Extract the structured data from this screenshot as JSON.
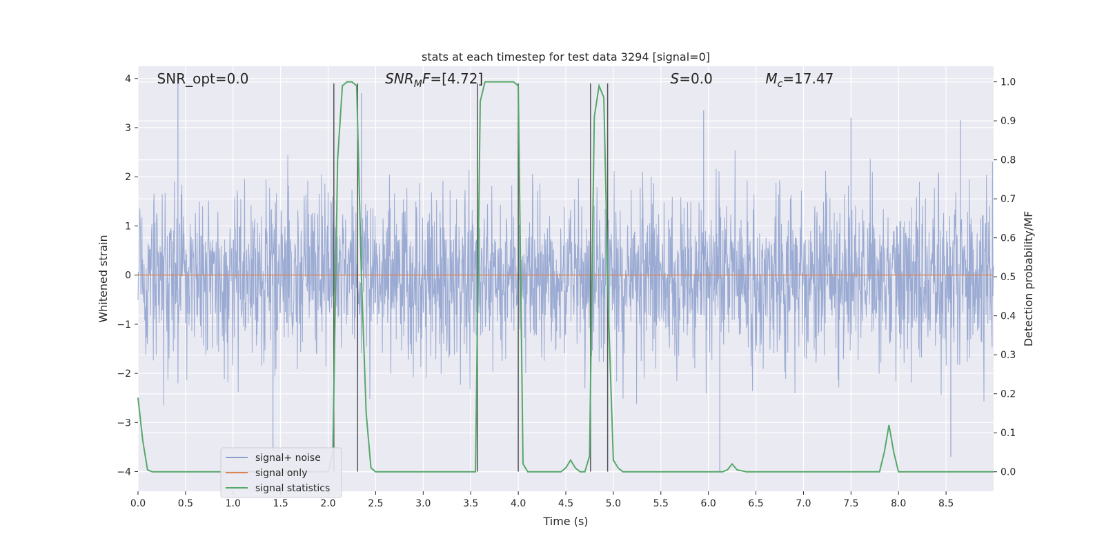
{
  "chart_data": {
    "type": "line",
    "title": "stats at each timestep for test data 3294 [signal=0]",
    "xlabel": "Time (s)",
    "ylabel": "Whitened strain",
    "y2label": "Detection probability/MF",
    "xlim": [
      0,
      9
    ],
    "ylim": [
      -4.4,
      4.25
    ],
    "y2lim": [
      -0.05,
      1.04
    ],
    "xticks": [
      0.0,
      0.5,
      1.0,
      1.5,
      2.0,
      2.5,
      3.0,
      3.5,
      4.0,
      4.5,
      5.0,
      5.5,
      6.0,
      6.5,
      7.0,
      7.5,
      8.0,
      8.5
    ],
    "yticks": [
      4,
      3,
      2,
      1,
      0,
      -1,
      -2,
      -3,
      -4
    ],
    "y2ticks": [
      1.0,
      0.9,
      0.8,
      0.7,
      0.6,
      0.5,
      0.4,
      0.3,
      0.2,
      0.1,
      0.0
    ],
    "grid": true,
    "legend_position": "lower-left",
    "annotations": [
      {
        "t": "SNR_opt=0.0",
        "x": 0.2,
        "y": 4.0
      },
      {
        "t": "SNR_MF=[4.72]",
        "x": 2.6,
        "y": 4.0
      },
      {
        "t": "S=0.0",
        "x": 5.6,
        "y": 4.0
      },
      {
        "t": "M_c=17.47",
        "x": 6.6,
        "y": 4.0
      }
    ],
    "vlines": [
      {
        "x": 2.06,
        "y_top": 3.9,
        "y_bottom": -4.0
      },
      {
        "x": 2.31,
        "y_top": 3.9,
        "y_bottom": -4.0
      },
      {
        "x": 3.57,
        "y_top": 3.9,
        "y_bottom": -4.0
      },
      {
        "x": 4.0,
        "y_top": 3.9,
        "y_bottom": -4.0
      },
      {
        "x": 4.76,
        "y_top": 3.9,
        "y_bottom": -4.0
      },
      {
        "x": 4.94,
        "y_top": 3.9,
        "y_bottom": -4.0
      }
    ],
    "series": [
      {
        "name": "signal+ noise",
        "color": "#8c9fcc",
        "kind": "noise",
        "x_range": [
          0,
          9
        ],
        "amplitude_std": 0.85,
        "peaks": [
          {
            "x": 0.42,
            "y": 4.0
          },
          {
            "x": 1.42,
            "y": -3.6
          },
          {
            "x": 6.12,
            "y": -4.0
          },
          {
            "x": 8.55,
            "y": -3.7
          },
          {
            "x": 2.35,
            "y": 3.7
          },
          {
            "x": 5.95,
            "y": 3.35
          },
          {
            "x": 7.5,
            "y": 3.2
          },
          {
            "x": 8.65,
            "y": 3.15
          }
        ]
      },
      {
        "name": "signal only",
        "color": "#dd8452",
        "kind": "line",
        "x": [
          0,
          9
        ],
        "y": [
          0,
          0
        ]
      },
      {
        "name": "signal statistics",
        "color": "#55a868",
        "kind": "line",
        "axis": "y2",
        "x": [
          0.0,
          0.05,
          0.1,
          0.15,
          2.0,
          2.05,
          2.1,
          2.15,
          2.2,
          2.25,
          2.3,
          2.35,
          2.4,
          2.45,
          2.5,
          3.55,
          3.6,
          3.65,
          3.7,
          3.75,
          3.95,
          4.0,
          4.05,
          4.1,
          4.2,
          4.45,
          4.5,
          4.55,
          4.6,
          4.65,
          4.7,
          4.75,
          4.8,
          4.85,
          4.9,
          4.95,
          5.0,
          5.05,
          5.1,
          6.15,
          6.2,
          6.25,
          6.3,
          6.4,
          7.8,
          7.85,
          7.9,
          7.95,
          8.0,
          9.0
        ],
        "y": [
          0.19,
          0.08,
          0.005,
          0.0,
          0.0,
          0.05,
          0.8,
          0.99,
          1.0,
          1.0,
          0.99,
          0.5,
          0.15,
          0.01,
          0.0,
          0.0,
          0.95,
          1.0,
          1.0,
          1.0,
          1.0,
          0.99,
          0.02,
          0.0,
          0.0,
          0.0,
          0.01,
          0.03,
          0.01,
          0.0,
          0.0,
          0.04,
          0.91,
          0.99,
          0.96,
          0.4,
          0.03,
          0.01,
          0.0,
          0.0,
          0.005,
          0.02,
          0.005,
          0.0,
          0.0,
          0.05,
          0.12,
          0.05,
          0.0,
          0.0
        ]
      }
    ]
  }
}
